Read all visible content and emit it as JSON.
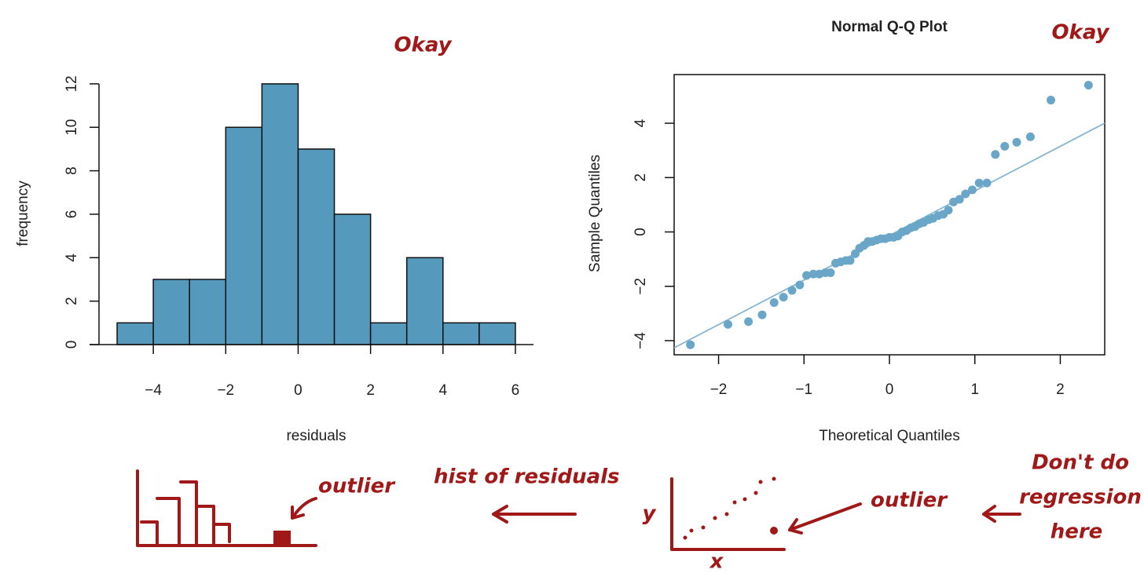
{
  "chart_data": [
    {
      "type": "histogram",
      "xlabel": "residuals",
      "ylabel": "frequency",
      "bins": [
        -5,
        -4,
        -3,
        -2,
        -1,
        0,
        1,
        2,
        3,
        4,
        5,
        6
      ],
      "values": [
        1,
        3,
        3,
        10,
        12,
        9,
        6,
        1,
        4,
        1,
        1
      ],
      "color": "#5599bd",
      "xlim": [
        -5.5,
        6.5
      ],
      "ylim": [
        0,
        12.5
      ],
      "xticks": [
        {
          "value": -4,
          "label": "−4"
        },
        {
          "value": -2,
          "label": "−2"
        },
        0,
        2,
        4,
        6
      ],
      "yticks": [
        0,
        2,
        4,
        6,
        8,
        10,
        12
      ]
    },
    {
      "type": "scatter",
      "title": "Normal Q-Q Plot",
      "xlabel": "Theoretical Quantiles",
      "ylabel": "Sample Quantiles",
      "x": [
        -2.33,
        -1.89,
        -1.65,
        -1.49,
        -1.35,
        -1.24,
        -1.14,
        -1.05,
        -0.97,
        -0.89,
        -0.82,
        -0.75,
        -0.69,
        -0.63,
        -0.57,
        -0.51,
        -0.46,
        -0.4,
        -0.35,
        -0.3,
        -0.25,
        -0.2,
        -0.15,
        -0.1,
        -0.05,
        0,
        0.05,
        0.1,
        0.15,
        0.2,
        0.25,
        0.3,
        0.35,
        0.4,
        0.46,
        0.51,
        0.57,
        0.63,
        0.69,
        0.75,
        0.82,
        0.89,
        0.97,
        1.05,
        1.14,
        1.24,
        1.35,
        1.49,
        1.65,
        1.89,
        2.33
      ],
      "values": [
        -4.15,
        -3.4,
        -3.3,
        -3.05,
        -2.6,
        -2.4,
        -2.15,
        -1.95,
        -1.6,
        -1.55,
        -1.55,
        -1.5,
        -1.5,
        -1.15,
        -1.1,
        -1.05,
        -1.05,
        -0.8,
        -0.6,
        -0.5,
        -0.35,
        -0.35,
        -0.3,
        -0.25,
        -0.25,
        -0.2,
        -0.2,
        -0.15,
        0,
        0.05,
        0.15,
        0.2,
        0.3,
        0.35,
        0.45,
        0.5,
        0.6,
        0.65,
        0.8,
        1.1,
        1.2,
        1.4,
        1.55,
        1.8,
        1.8,
        2.85,
        3.15,
        3.3,
        3.5,
        4.85,
        5.4
      ],
      "color": "#6aa6c8",
      "reference_line": {
        "intercept": -0.13,
        "slope": 1.64,
        "color": "#86b6d2"
      },
      "xlim": [
        -2.52,
        2.52
      ],
      "ylim": [
        -4.52,
        5.79
      ],
      "xticks": [
        {
          "value": -2,
          "label": "−2"
        },
        {
          "value": -1,
          "label": "−1"
        },
        0,
        1,
        2
      ],
      "yticks": [
        {
          "value": -4,
          "label": "−4"
        },
        {
          "value": -2,
          "label": "−2"
        },
        0,
        2,
        4
      ]
    }
  ],
  "annotations": [
    "Okay",
    "Okay",
    "outlier",
    "hist of residuals",
    "outlier",
    "Don't do",
    "regression",
    "here",
    "y",
    "x"
  ]
}
